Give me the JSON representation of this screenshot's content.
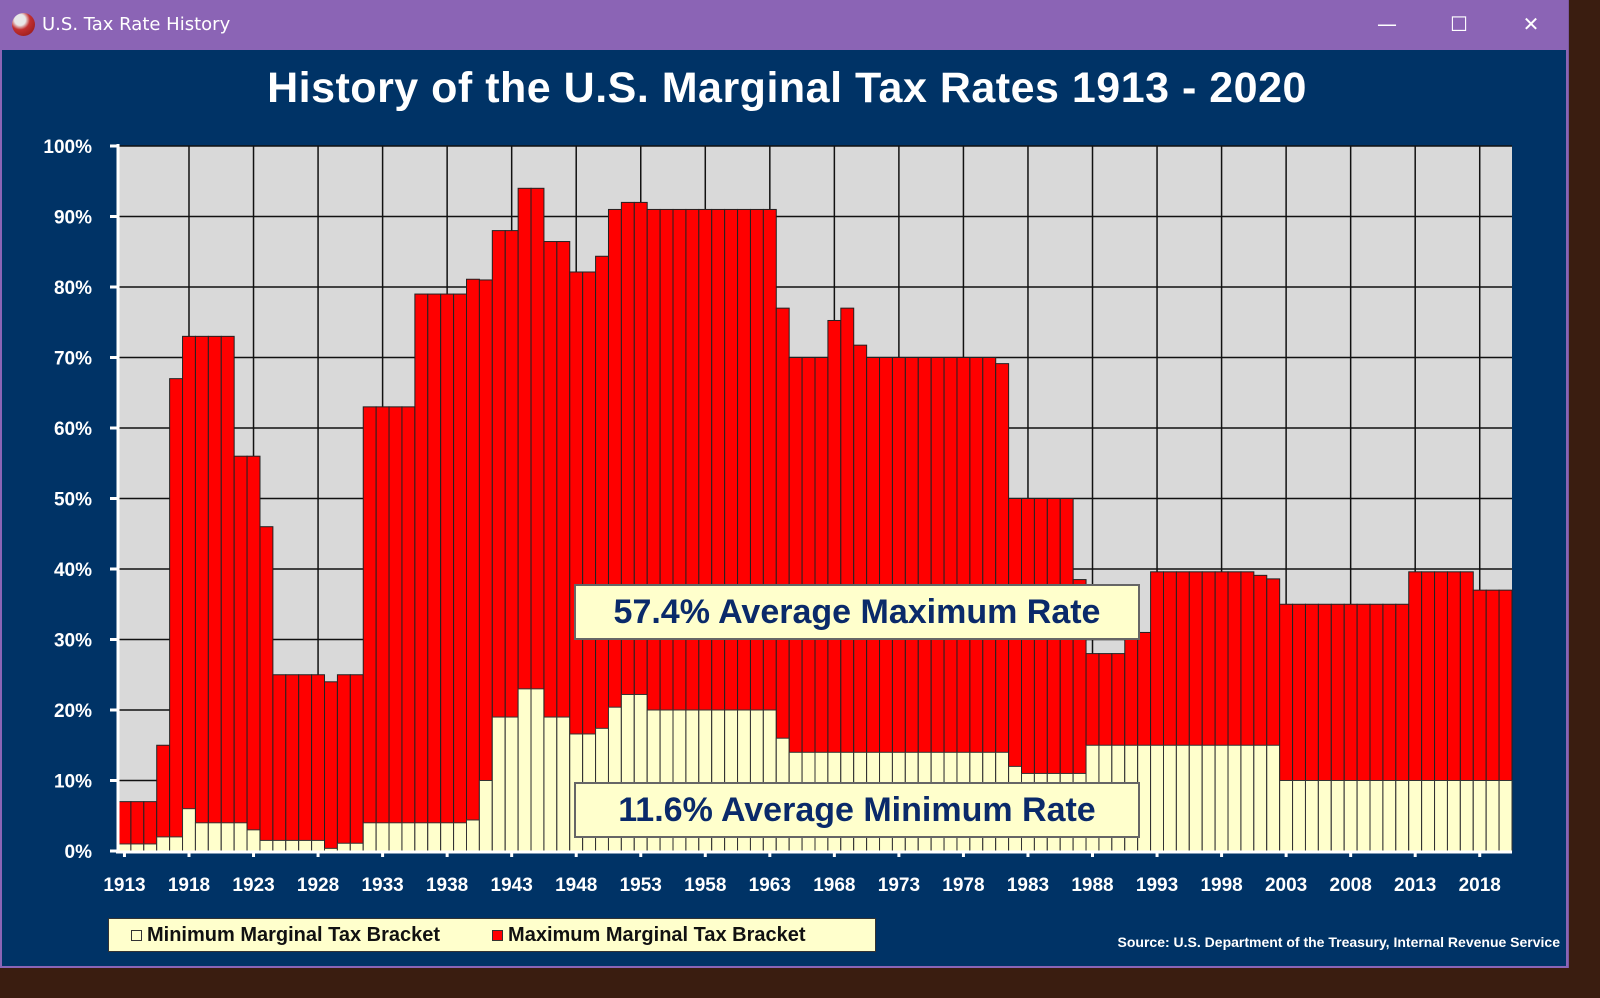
{
  "window": {
    "title": "U.S. Tax Rate History",
    "icon": "app-logo-icon",
    "controls": {
      "minimize": "—",
      "maximize": "☐",
      "close": "✕"
    }
  },
  "annotations": {
    "max_avg": "57.4% Average Maximum Rate",
    "min_avg": "11.6% Average Minimum Rate"
  },
  "legend": {
    "min_label": "Minimum Marginal Tax Bracket",
    "max_label": "Maximum Marginal Tax Bracket"
  },
  "source": "Source: U.S. Department of the Treasury, Internal Revenue Service",
  "colors": {
    "max": "#ff0000",
    "min": "#ffffcc",
    "plot_bg": "#d9d9d9",
    "frame": "#003366"
  },
  "chart_data": {
    "type": "bar",
    "stacking": "overlay",
    "title": "History of the U.S. Marginal Tax Rates 1913 - 2020",
    "xlabel": "",
    "ylabel": "",
    "ylim": [
      0,
      100
    ],
    "y_ticks": [
      "0%",
      "10%",
      "20%",
      "30%",
      "40%",
      "50%",
      "60%",
      "70%",
      "80%",
      "90%",
      "100%"
    ],
    "x_tick_labels": [
      "1913",
      "1918",
      "1923",
      "1928",
      "1933",
      "1938",
      "1943",
      "1948",
      "1953",
      "1958",
      "1963",
      "1968",
      "1973",
      "1978",
      "1983",
      "1988",
      "1993",
      "1998",
      "2003",
      "2008",
      "2013",
      "2018"
    ],
    "grid": true,
    "legend_position": "bottom-left",
    "years": [
      1913,
      1914,
      1915,
      1916,
      1917,
      1918,
      1919,
      1920,
      1921,
      1922,
      1923,
      1924,
      1925,
      1926,
      1927,
      1928,
      1929,
      1930,
      1931,
      1932,
      1933,
      1934,
      1935,
      1936,
      1937,
      1938,
      1939,
      1940,
      1941,
      1942,
      1943,
      1944,
      1945,
      1946,
      1947,
      1948,
      1949,
      1950,
      1951,
      1952,
      1953,
      1954,
      1955,
      1956,
      1957,
      1958,
      1959,
      1960,
      1961,
      1962,
      1963,
      1964,
      1965,
      1966,
      1967,
      1968,
      1969,
      1970,
      1971,
      1972,
      1973,
      1974,
      1975,
      1976,
      1977,
      1978,
      1979,
      1980,
      1981,
      1982,
      1983,
      1984,
      1985,
      1986,
      1987,
      1988,
      1989,
      1990,
      1991,
      1992,
      1993,
      1994,
      1995,
      1996,
      1997,
      1998,
      1999,
      2000,
      2001,
      2002,
      2003,
      2004,
      2005,
      2006,
      2007,
      2008,
      2009,
      2010,
      2011,
      2012,
      2013,
      2014,
      2015,
      2016,
      2017,
      2018,
      2019,
      2020
    ],
    "series": [
      {
        "name": "Maximum Marginal Tax Bracket",
        "values": [
          7,
          7,
          7,
          15,
          67,
          73,
          73,
          73,
          73,
          56,
          56,
          46,
          25,
          25,
          25,
          25,
          24,
          25,
          25,
          63,
          63,
          63,
          63,
          79,
          79,
          79,
          79,
          81.1,
          81,
          88,
          88,
          94,
          94,
          86.45,
          86.45,
          82.13,
          82.13,
          84.36,
          91,
          92,
          92,
          91,
          91,
          91,
          91,
          91,
          91,
          91,
          91,
          91,
          91,
          77,
          70,
          70,
          70,
          75.25,
          77,
          71.75,
          70,
          70,
          70,
          70,
          70,
          70,
          70,
          70,
          70,
          70,
          69.13,
          50,
          50,
          50,
          50,
          50,
          38.5,
          28,
          28,
          28,
          31,
          31,
          39.6,
          39.6,
          39.6,
          39.6,
          39.6,
          39.6,
          39.6,
          39.6,
          39.1,
          38.6,
          35,
          35,
          35,
          35,
          35,
          35,
          35,
          35,
          35,
          35,
          39.6,
          39.6,
          39.6,
          39.6,
          39.6,
          37,
          37,
          37
        ]
      },
      {
        "name": "Minimum Marginal Tax Bracket",
        "values": [
          1,
          1,
          1,
          2,
          2,
          6,
          4,
          4,
          4,
          4,
          3,
          1.5,
          1.5,
          1.5,
          1.5,
          1.5,
          0.375,
          1.1,
          1.1,
          4,
          4,
          4,
          4,
          4,
          4,
          4,
          4,
          4.4,
          10,
          19,
          19,
          23,
          23,
          19,
          19,
          16.6,
          16.6,
          17.4,
          20.4,
          22.2,
          22.2,
          20,
          20,
          20,
          20,
          20,
          20,
          20,
          20,
          20,
          20,
          16,
          14,
          14,
          14,
          14,
          14,
          14,
          14,
          14,
          14,
          14,
          14,
          14,
          14,
          14,
          14,
          14,
          14,
          12,
          11,
          11,
          11,
          11,
          11,
          15,
          15,
          15,
          15,
          15,
          15,
          15,
          15,
          15,
          15,
          15,
          15,
          15,
          15,
          15,
          10,
          10,
          10,
          10,
          10,
          10,
          10,
          10,
          10,
          10,
          10,
          10,
          10,
          10,
          10,
          10,
          10,
          10
        ]
      }
    ]
  }
}
